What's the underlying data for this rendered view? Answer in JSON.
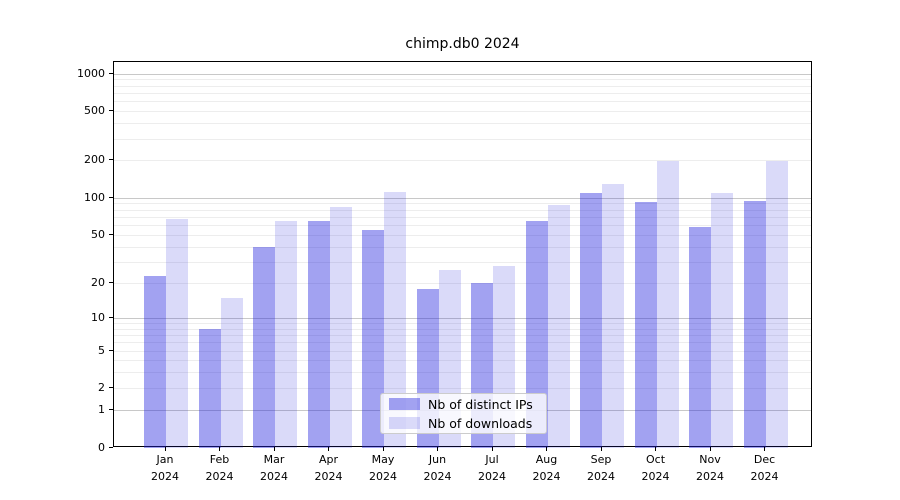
{
  "chart_data": {
    "type": "bar",
    "title": "chimp.db0 2024",
    "categories": [
      "Jan",
      "Feb",
      "Mar",
      "Apr",
      "May",
      "Jun",
      "Jul",
      "Aug",
      "Sep",
      "Oct",
      "Nov",
      "Dec"
    ],
    "year_label": "2024",
    "series": [
      {
        "name": "Nb of distinct IPs",
        "color": "rgba(34,34,221,0.42)",
        "legend_color": "#a3a3ee",
        "values": [
          23,
          8,
          40,
          65,
          55,
          18,
          20,
          65,
          110,
          93,
          58,
          95
        ]
      },
      {
        "name": "Nb of downloads",
        "color": "rgba(34,34,221,0.17)",
        "legend_color": "#d9d9f7",
        "values": [
          68,
          15,
          65,
          85,
          112,
          26,
          28,
          88,
          130,
          200,
          110,
          200
        ]
      }
    ],
    "yscale": "log1p",
    "ylim": [
      0,
      1250
    ],
    "yticks": [
      0,
      1,
      2,
      5,
      10,
      20,
      50,
      100,
      200,
      500,
      1000
    ],
    "ytick_labels": [
      "0",
      "1",
      "2",
      "5",
      "10",
      "20",
      "50",
      "100",
      "200",
      "500",
      "1000"
    ],
    "grid": {
      "major_ticks": [
        1,
        10,
        100,
        1000
      ],
      "major_color": "#c8c8c8",
      "minor_color": "#ededed"
    },
    "legend_position": "lower center"
  }
}
